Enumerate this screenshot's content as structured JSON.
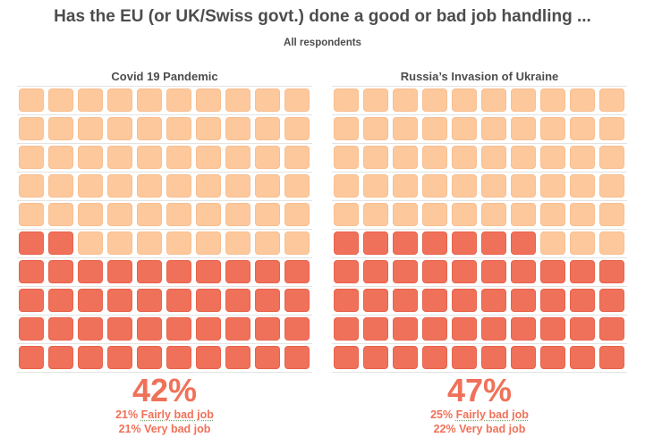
{
  "title": "Has the EU (or UK/Swiss govt.) done a good or bad job handling ...",
  "subtitle": "All respondents",
  "colors": {
    "bad": "#f07159",
    "other": "#fdc89c"
  },
  "chart_data": [
    {
      "type": "waffle",
      "title": "Covid 19 Pandemic",
      "total_cells": 100,
      "bad_cells": 42,
      "bad_percent": "42%",
      "breakdown": [
        {
          "value": "21%",
          "label": "Fairly bad job"
        },
        {
          "value": "21%",
          "label": "Very bad job"
        }
      ]
    },
    {
      "type": "waffle",
      "title": "Russia’s Invasion of Ukraine",
      "total_cells": 100,
      "bad_cells": 47,
      "bad_percent": "47%",
      "breakdown": [
        {
          "value": "25%",
          "label": "Fairly bad job"
        },
        {
          "value": "22%",
          "label": "Very bad job"
        }
      ]
    }
  ]
}
